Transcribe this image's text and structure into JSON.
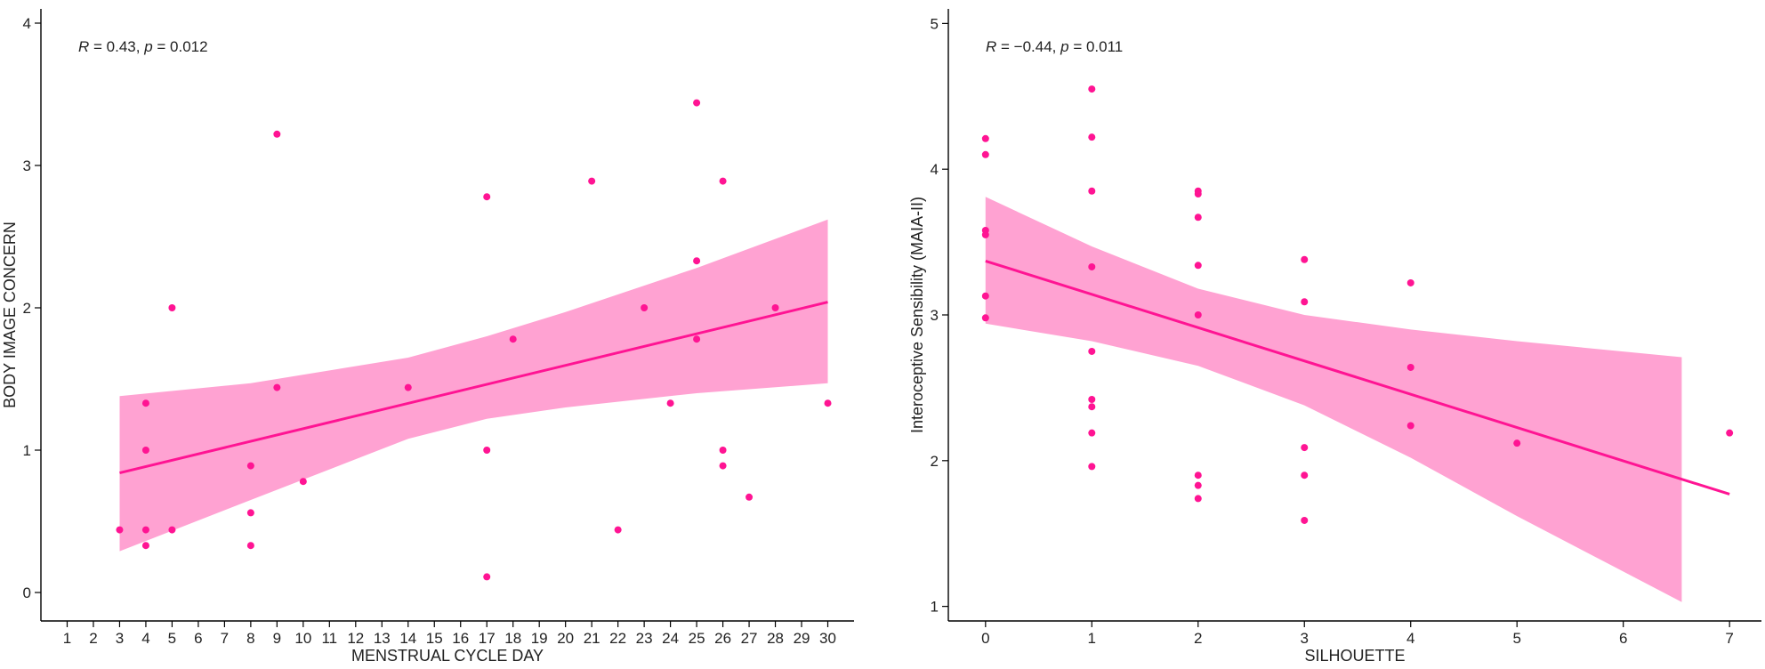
{
  "colors": {
    "point": "#ff1493",
    "line": "#ff1493",
    "band": "#ffa2d2",
    "axis": "#000000"
  },
  "chart_data": [
    {
      "type": "scatter",
      "title": "",
      "xlabel": "MENSTRUAL CYCLE DAY",
      "ylabel": "BODY IMAGE CONCERN",
      "xlim": [
        0,
        31
      ],
      "ylim": [
        -0.2,
        4.1
      ],
      "xticks": [
        1,
        2,
        3,
        4,
        5,
        6,
        7,
        8,
        9,
        10,
        11,
        12,
        13,
        14,
        15,
        16,
        17,
        18,
        19,
        20,
        21,
        22,
        23,
        24,
        25,
        26,
        27,
        28,
        29,
        30
      ],
      "xtick_labels": [
        "1",
        "2",
        "3",
        "4",
        "5",
        "6",
        "7",
        "8",
        "9",
        "10",
        "11",
        "12",
        "13",
        "14",
        "15",
        "16",
        "17",
        "18",
        "19",
        "20",
        "21",
        "22",
        "23",
        "24",
        "25",
        "26",
        "27",
        "28",
        "29",
        "30"
      ],
      "yticks": [
        0,
        1,
        2,
        3,
        4
      ],
      "ytick_labels": [
        "0",
        "1",
        "2",
        "3",
        "4"
      ],
      "annotation": {
        "r_label": "R",
        "r_value": " = 0.43, ",
        "p_label": "p",
        "p_value": " = 0.012",
        "x": 1,
        "y": 3.9
      },
      "points": [
        {
          "x": 3,
          "y": 0.44
        },
        {
          "x": 4,
          "y": 1.33
        },
        {
          "x": 4,
          "y": 1.0
        },
        {
          "x": 4,
          "y": 0.44
        },
        {
          "x": 4,
          "y": 0.33
        },
        {
          "x": 5,
          "y": 2.0
        },
        {
          "x": 5,
          "y": 0.44
        },
        {
          "x": 8,
          "y": 0.89
        },
        {
          "x": 8,
          "y": 0.56
        },
        {
          "x": 8,
          "y": 0.33
        },
        {
          "x": 9,
          "y": 3.22
        },
        {
          "x": 9,
          "y": 1.44
        },
        {
          "x": 10,
          "y": 0.78
        },
        {
          "x": 14,
          "y": 1.44
        },
        {
          "x": 17,
          "y": 2.78
        },
        {
          "x": 17,
          "y": 1.0
        },
        {
          "x": 17,
          "y": 0.11
        },
        {
          "x": 18,
          "y": 1.78
        },
        {
          "x": 21,
          "y": 2.89
        },
        {
          "x": 22,
          "y": 0.44
        },
        {
          "x": 23,
          "y": 2.0
        },
        {
          "x": 24,
          "y": 1.33
        },
        {
          "x": 25,
          "y": 3.44
        },
        {
          "x": 25,
          "y": 2.33
        },
        {
          "x": 25,
          "y": 1.78
        },
        {
          "x": 26,
          "y": 2.89
        },
        {
          "x": 26,
          "y": 1.0
        },
        {
          "x": 26,
          "y": 0.89
        },
        {
          "x": 27,
          "y": 0.67
        },
        {
          "x": 28,
          "y": 2.0
        },
        {
          "x": 30,
          "y": 1.33
        }
      ],
      "fit_line": {
        "x": [
          3,
          30
        ],
        "y": [
          0.84,
          2.04
        ]
      },
      "confidence_band": {
        "x": [
          3,
          8,
          14,
          17,
          20,
          25,
          30
        ],
        "lower": [
          0.29,
          0.65,
          1.08,
          1.22,
          1.3,
          1.4,
          1.47
        ],
        "upper": [
          1.38,
          1.47,
          1.65,
          1.8,
          1.97,
          2.28,
          2.62
        ]
      }
    },
    {
      "type": "scatter",
      "title": "",
      "xlabel": "SILHOUETTE",
      "ylabel": "Interoceptive Sensibility (MAIA-II)",
      "xlim": [
        -0.35,
        7.3
      ],
      "ylim": [
        0.9,
        5.1
      ],
      "xticks": [
        0,
        1,
        2,
        3,
        4,
        5,
        6,
        7
      ],
      "xtick_labels": [
        "0",
        "1",
        "2",
        "3",
        "4",
        "5",
        "6",
        "7"
      ],
      "yticks": [
        1,
        2,
        3,
        4,
        5
      ],
      "ytick_labels": [
        "1",
        "2",
        "3",
        "4",
        "5"
      ],
      "annotation": {
        "r_label": "R",
        "r_value": " = −0.44, ",
        "p_label": "p",
        "p_value": " = 0.011",
        "x": 0,
        "y": 4.95
      },
      "points": [
        {
          "x": 0,
          "y": 4.21
        },
        {
          "x": 0,
          "y": 4.1
        },
        {
          "x": 0,
          "y": 3.58
        },
        {
          "x": 0,
          "y": 3.55
        },
        {
          "x": 0,
          "y": 3.13
        },
        {
          "x": 0,
          "y": 2.98
        },
        {
          "x": 1,
          "y": 4.55
        },
        {
          "x": 1,
          "y": 4.22
        },
        {
          "x": 1,
          "y": 3.85
        },
        {
          "x": 1,
          "y": 3.33
        },
        {
          "x": 1,
          "y": 2.75
        },
        {
          "x": 1,
          "y": 2.42
        },
        {
          "x": 1,
          "y": 2.37
        },
        {
          "x": 1,
          "y": 2.19
        },
        {
          "x": 1,
          "y": 1.96
        },
        {
          "x": 2,
          "y": 3.85
        },
        {
          "x": 2,
          "y": 3.83
        },
        {
          "x": 2,
          "y": 3.67
        },
        {
          "x": 2,
          "y": 3.34
        },
        {
          "x": 2,
          "y": 3.0
        },
        {
          "x": 2,
          "y": 1.9
        },
        {
          "x": 2,
          "y": 1.83
        },
        {
          "x": 2,
          "y": 1.74
        },
        {
          "x": 3,
          "y": 3.38
        },
        {
          "x": 3,
          "y": 3.09
        },
        {
          "x": 3,
          "y": 2.09
        },
        {
          "x": 3,
          "y": 1.9
        },
        {
          "x": 3,
          "y": 1.59
        },
        {
          "x": 4,
          "y": 3.22
        },
        {
          "x": 4,
          "y": 2.64
        },
        {
          "x": 4,
          "y": 2.24
        },
        {
          "x": 5,
          "y": 2.12
        },
        {
          "x": 7,
          "y": 2.19
        }
      ],
      "fit_line": {
        "x": [
          0,
          7
        ],
        "y": [
          3.37,
          1.77
        ]
      },
      "confidence_band": {
        "x": [
          0,
          1,
          2,
          3,
          4,
          5,
          6.55
        ],
        "lower": [
          2.94,
          2.82,
          2.65,
          2.38,
          2.02,
          1.62,
          1.03
        ],
        "upper": [
          3.81,
          3.47,
          3.18,
          3.0,
          2.9,
          2.82,
          2.71
        ]
      }
    }
  ]
}
